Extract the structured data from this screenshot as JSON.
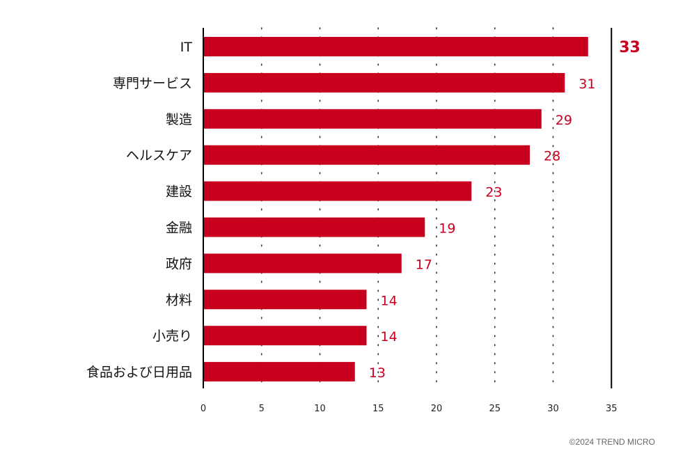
{
  "chart_data": {
    "type": "bar",
    "orientation": "horizontal",
    "categories": [
      "IT",
      "専門サービス",
      "製造",
      "ヘルスケア",
      "建設",
      "金融",
      "政府",
      "材料",
      "小売り",
      "食品および日用品"
    ],
    "values": [
      33,
      31,
      29,
      28,
      23,
      19,
      17,
      14,
      14,
      13
    ],
    "xlim": [
      0,
      35
    ],
    "xticks": [
      0,
      5,
      10,
      15,
      20,
      25,
      30,
      35
    ],
    "title": "",
    "xlabel": "",
    "ylabel": "",
    "grid": "dotted-vertical",
    "bar_color": "#c8001e",
    "label_color": "#c8001e",
    "highlight_max": true
  },
  "footer": {
    "copyright": "©2024 TREND MICRO"
  }
}
